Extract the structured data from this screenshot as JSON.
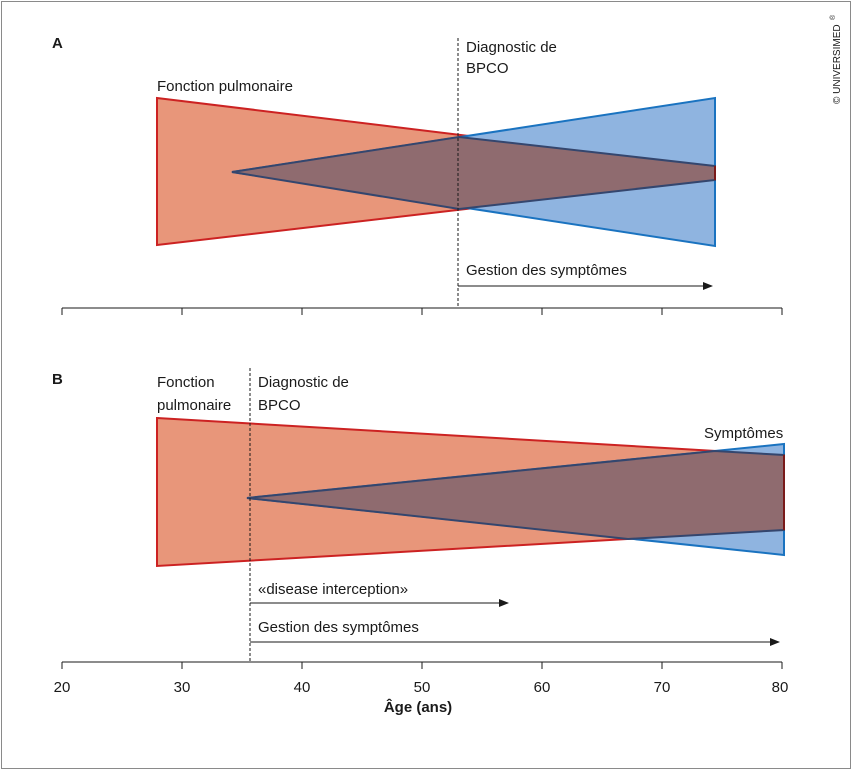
{
  "copyright": "© UNIVERSIMED",
  "copyright_mark": "®",
  "colors": {
    "lung": "#e8967a",
    "lung_stroke": "#cc2222",
    "symptom": "#8fb4e0",
    "symptom_stroke": "#1a73c0",
    "overlap": "#8f6b6f",
    "overlap_stroke": "#34466e"
  },
  "axis": {
    "ticks": [
      "20",
      "30",
      "40",
      "50",
      "60",
      "70",
      "80"
    ],
    "title": "Âge (ans)"
  },
  "panel_a": {
    "letter": "A",
    "lung_label": "Fonction pulmonaire",
    "diagnosis_line1": "Diagnostic de",
    "diagnosis_line2": "BPCO",
    "arrow_label": "Gestion des symptômes"
  },
  "panel_b": {
    "letter": "B",
    "lung_label_line1": "Fonction",
    "lung_label_line2": "pulmonaire",
    "diagnosis_line1": "Diagnostic de",
    "diagnosis_line2": "BPCO",
    "symptom_label": "Symptômes",
    "arrow1_label": "«disease interception»",
    "arrow2_label": "Gestion des symptômes"
  }
}
